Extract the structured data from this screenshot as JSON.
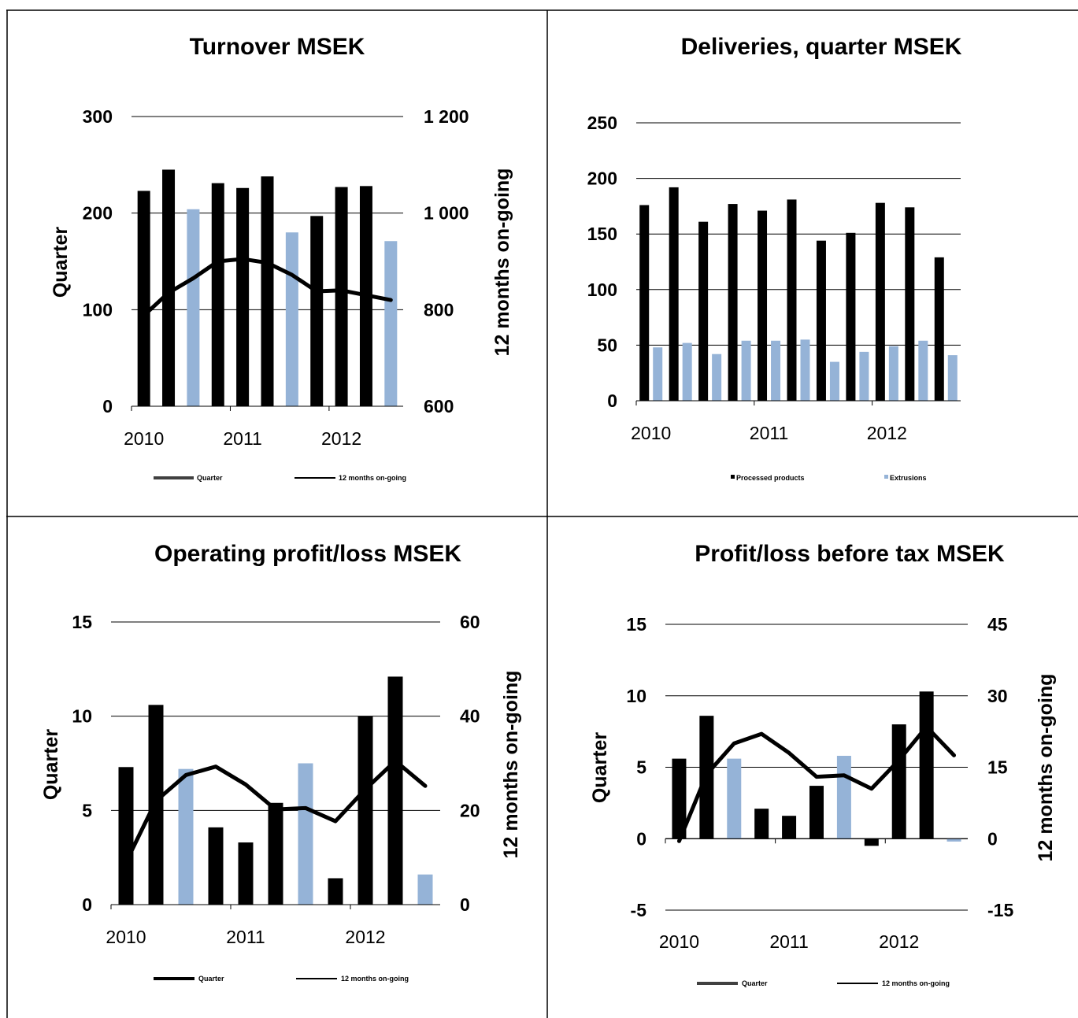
{
  "colors": {
    "primary_bar": "#000000",
    "highlight_bar": "#95b3d7",
    "line": "#000000",
    "grid": "#000000",
    "border": "#000000"
  },
  "chart_data": [
    {
      "id": "turnover",
      "type": "bar+line",
      "title": "Turnover MSEK",
      "ylabel": "Quarter",
      "y2label": "12 months on-going",
      "ylim": [
        0,
        300
      ],
      "yticks": [
        "0",
        "100",
        "200",
        "300"
      ],
      "y2lim": [
        600,
        1200
      ],
      "y2ticks": [
        "600",
        "800",
        "1 000",
        "1 200"
      ],
      "x_year_labels": [
        {
          "label": "2010",
          "at": 0
        },
        {
          "label": "2011",
          "at": 4
        },
        {
          "label": "2012",
          "at": 8
        }
      ],
      "series": [
        {
          "name": "Quarter",
          "kind": "bar",
          "axis": "left",
          "values": [
            223,
            245,
            204,
            231,
            226,
            238,
            180,
            197,
            227,
            228,
            171
          ],
          "highlight": [
            false,
            false,
            true,
            false,
            false,
            false,
            true,
            false,
            false,
            false,
            true
          ]
        },
        {
          "name": "12 months on-going",
          "kind": "line",
          "axis": "right",
          "values": [
            788,
            835,
            865,
            900,
            905,
            897,
            872,
            838,
            840,
            830,
            820
          ]
        }
      ],
      "legend": [
        {
          "label": "Quarter",
          "kind": "line",
          "color": "#404040"
        },
        {
          "label": "12 months on-going",
          "kind": "line",
          "color": "#000000"
        }
      ]
    },
    {
      "id": "deliveries",
      "type": "bar",
      "title": "Deliveries, quarter MSEK",
      "ylabel": "",
      "ylim": [
        0,
        250
      ],
      "yticks": [
        "0",
        "50",
        "100",
        "150",
        "200",
        "250"
      ],
      "x_year_labels": [
        {
          "label": "2010",
          "at": 0
        },
        {
          "label": "2011",
          "at": 4
        },
        {
          "label": "2012",
          "at": 8
        }
      ],
      "series": [
        {
          "name": "Processed products",
          "kind": "bar",
          "values": [
            176,
            192,
            161,
            177,
            171,
            181,
            144,
            151,
            178,
            174,
            129
          ]
        },
        {
          "name": "Extrusions",
          "kind": "bar",
          "values": [
            48,
            52,
            42,
            54,
            54,
            55,
            35,
            44,
            49,
            54,
            41
          ]
        }
      ],
      "legend": [
        {
          "label": "Processed products",
          "kind": "square",
          "color": "#000000"
        },
        {
          "label": "Extrusions",
          "kind": "square",
          "color": "#95b3d7"
        }
      ]
    },
    {
      "id": "operating",
      "type": "bar+line",
      "title": "Operating profit/loss MSEK",
      "ylabel": "Quarter",
      "y2label": "12 months on-going",
      "ylim": [
        0,
        15
      ],
      "yticks": [
        "0",
        "5",
        "10",
        "15"
      ],
      "y2lim": [
        0,
        60
      ],
      "y2ticks": [
        "0",
        "20",
        "40",
        "60"
      ],
      "x_year_labels": [
        {
          "label": "2010",
          "at": 0
        },
        {
          "label": "2011",
          "at": 4
        },
        {
          "label": "2012",
          "at": 8
        }
      ],
      "series": [
        {
          "name": "Quarter",
          "kind": "bar",
          "axis": "left",
          "values": [
            7.3,
            10.6,
            7.2,
            4.1,
            3.3,
            5.4,
            7.5,
            1.4,
            10.0,
            12.1,
            1.6
          ],
          "highlight": [
            false,
            false,
            true,
            false,
            false,
            false,
            true,
            false,
            false,
            false,
            true
          ]
        },
        {
          "name": "12 months on-going",
          "kind": "line",
          "axis": "right",
          "values": [
            9,
            22,
            27.5,
            29.3,
            25.5,
            20.2,
            20.5,
            17.7,
            24.5,
            30.5,
            25.2
          ]
        }
      ],
      "legend": [
        {
          "label": "Quarter",
          "kind": "line",
          "color": "#000000"
        },
        {
          "label": "12 months on-going",
          "kind": "line",
          "color": "#000000"
        }
      ]
    },
    {
      "id": "pretax",
      "type": "bar+line",
      "title": "Profit/loss before tax MSEK",
      "ylabel": "Quarter",
      "y2label": "12 months on-going",
      "ylim": [
        -5,
        15
      ],
      "yticks": [
        "-5",
        "0",
        "5",
        "10",
        "15"
      ],
      "y2lim": [
        -15,
        45
      ],
      "y2ticks": [
        "-15",
        "0",
        "15",
        "30",
        "45"
      ],
      "x_year_labels": [
        {
          "label": "2010",
          "at": 0
        },
        {
          "label": "2011",
          "at": 4
        },
        {
          "label": "2012",
          "at": 8
        }
      ],
      "series": [
        {
          "name": "Quarter",
          "kind": "bar",
          "axis": "left",
          "values": [
            5.6,
            8.6,
            5.6,
            2.1,
            1.6,
            3.7,
            5.8,
            -0.5,
            8.0,
            10.3,
            -0.2
          ],
          "highlight": [
            false,
            false,
            true,
            false,
            false,
            false,
            true,
            false,
            false,
            false,
            true
          ]
        },
        {
          "name": "12 months on-going",
          "kind": "line",
          "axis": "right",
          "values": [
            -0.5,
            13.5,
            20,
            22,
            18,
            13,
            13.3,
            10.5,
            16.5,
            23.5,
            17.5
          ]
        }
      ],
      "legend": [
        {
          "label": "Quarter",
          "kind": "line",
          "color": "#404040"
        },
        {
          "label": "12 months on-going",
          "kind": "line",
          "color": "#000000"
        }
      ]
    }
  ]
}
